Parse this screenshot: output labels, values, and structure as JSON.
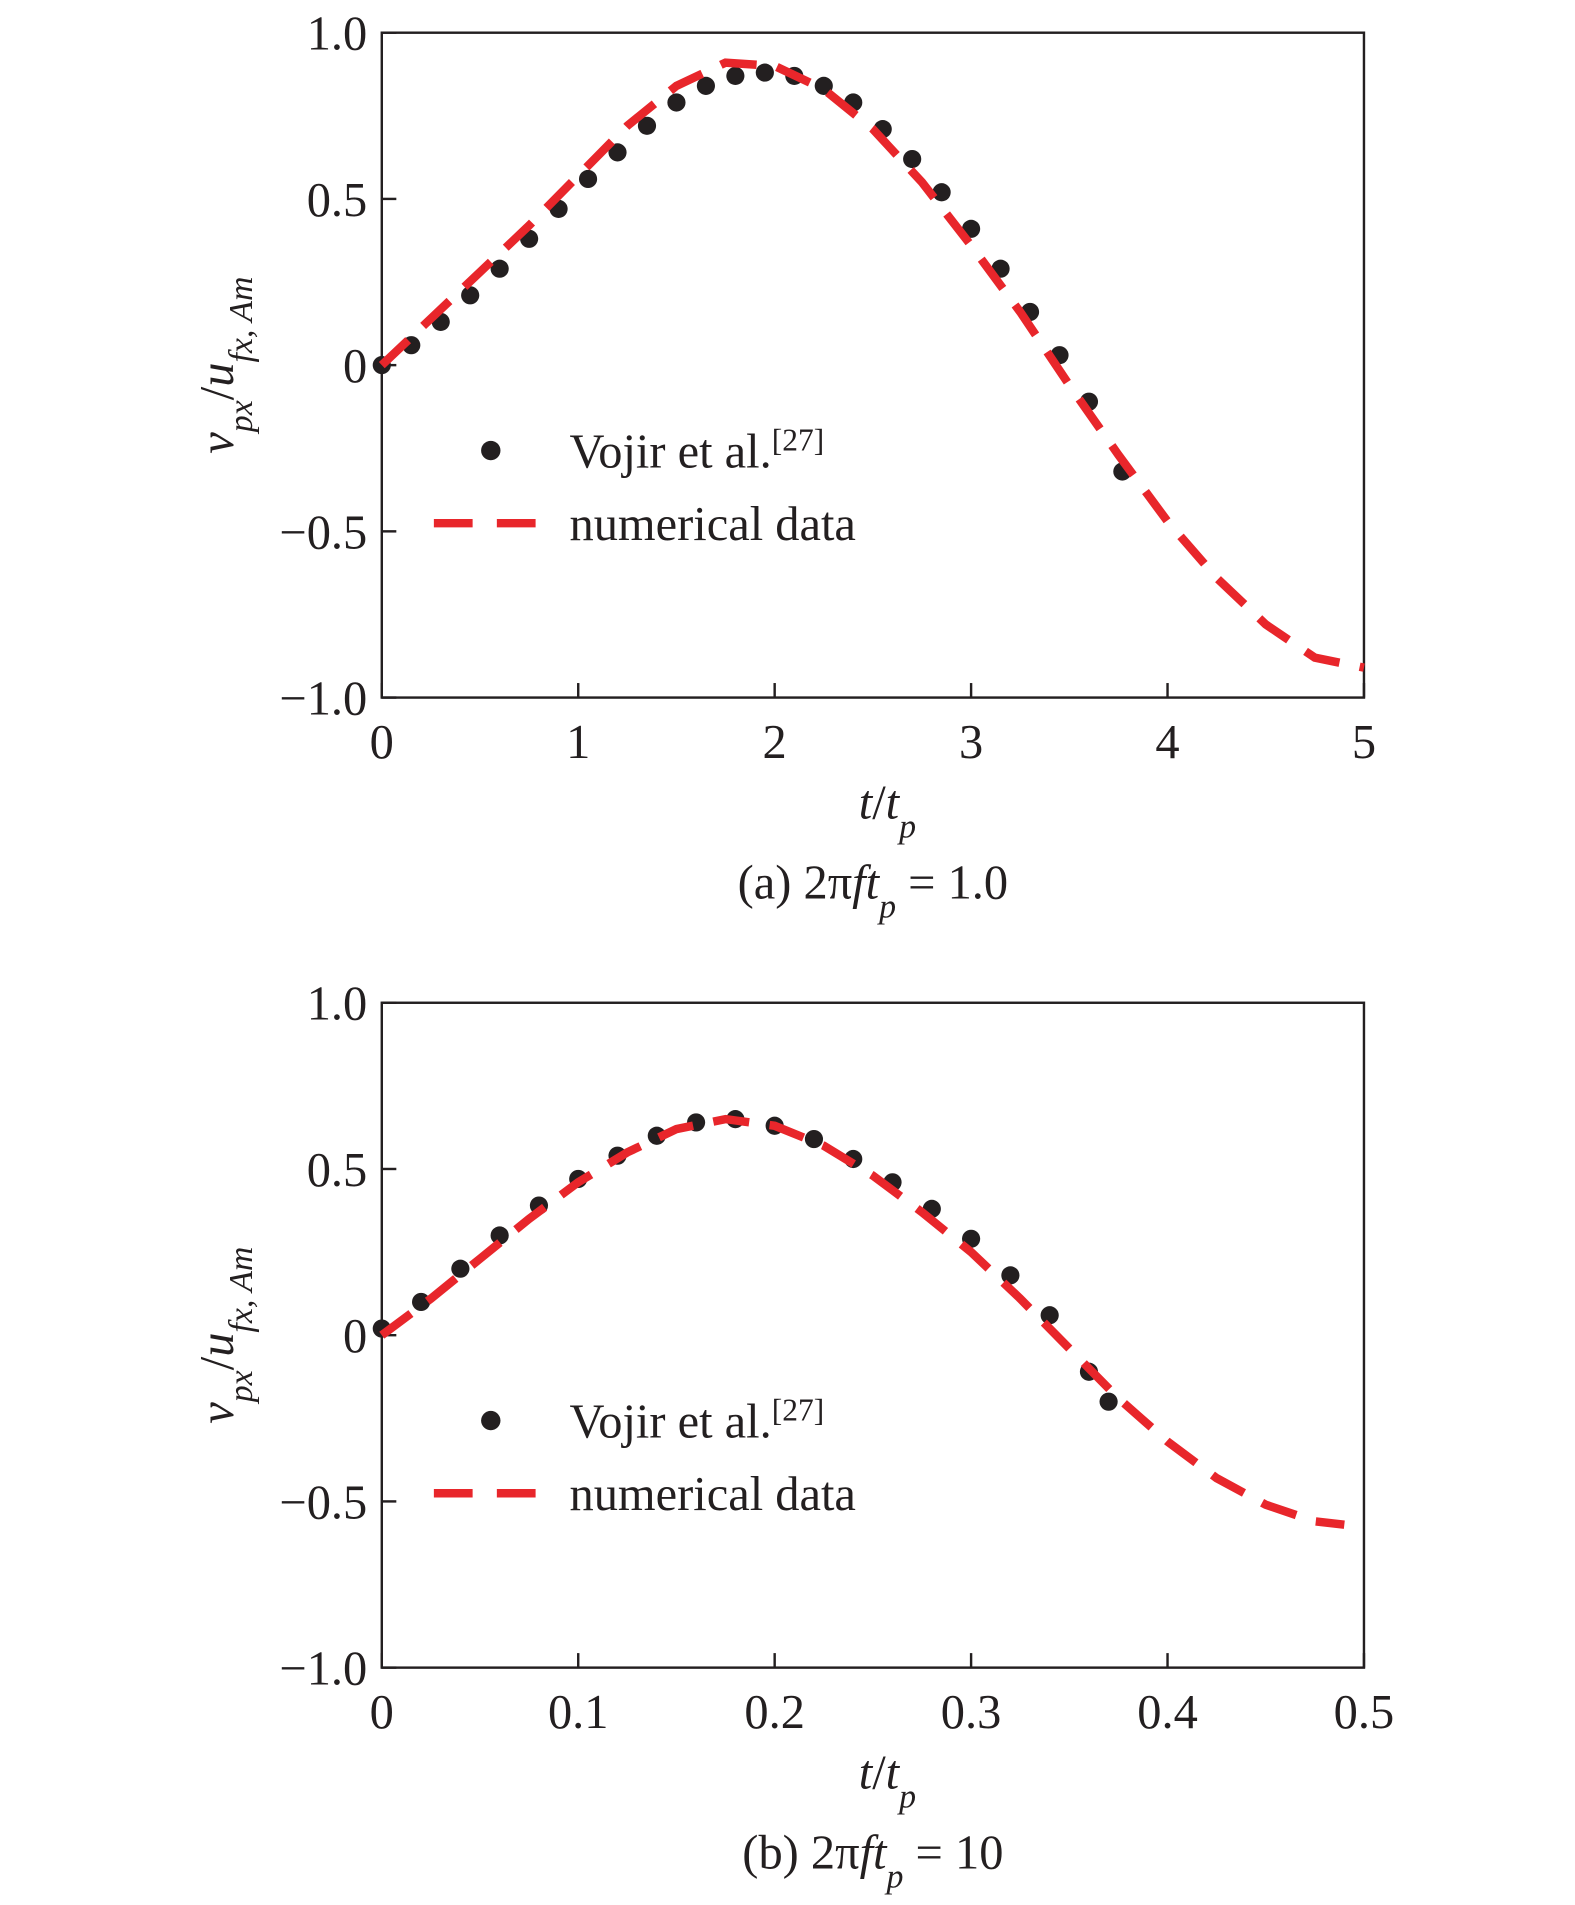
{
  "chart_data": [
    {
      "type": "line",
      "xlabel": [
        {
          "text": "t",
          "italic": true
        },
        {
          "text": "/"
        },
        {
          "text": "t",
          "italic": true
        },
        {
          "text": "p",
          "italic": true,
          "sub": true
        }
      ],
      "ylabel": [
        {
          "text": "v",
          "italic": true
        },
        {
          "text": "px",
          "italic": true,
          "sub": true
        },
        {
          "text": "/"
        },
        {
          "text": "u",
          "italic": true
        },
        {
          "text": "fx, Am",
          "italic": true,
          "sub": true
        }
      ],
      "caption": [
        {
          "text": "(a) 2π"
        },
        {
          "text": "ft",
          "italic": true
        },
        {
          "text": "p",
          "italic": true,
          "sub": true
        },
        {
          "text": " = 1.0"
        }
      ],
      "xlim": [
        0,
        5
      ],
      "ylim": [
        -1.0,
        1.0
      ],
      "xticks": [
        0,
        1,
        2,
        3,
        4,
        5
      ],
      "yticks": [
        {
          "value": -1.0,
          "label": "−1.0"
        },
        {
          "value": -0.5,
          "label": "−0.5"
        },
        0,
        0.5,
        {
          "value": 1.0,
          "label": "1.0"
        }
      ],
      "series": [
        {
          "name": "Vojir et al.",
          "superscript": "[27]",
          "style": "markers",
          "color": "#231f20",
          "x": [
            0,
            0.15,
            0.3,
            0.45,
            0.6,
            0.75,
            0.9,
            1.05,
            1.2,
            1.35,
            1.5,
            1.65,
            1.8,
            1.95,
            2.1,
            2.25,
            2.4,
            2.55,
            2.7,
            2.85,
            3.0,
            3.15,
            3.3,
            3.45,
            3.6,
            3.77
          ],
          "values": [
            0,
            0.06,
            0.13,
            0.21,
            0.29,
            0.38,
            0.47,
            0.56,
            0.64,
            0.72,
            0.79,
            0.84,
            0.87,
            0.88,
            0.87,
            0.84,
            0.79,
            0.71,
            0.62,
            0.52,
            0.41,
            0.29,
            0.16,
            0.03,
            -0.11,
            -0.32
          ]
        },
        {
          "name": "numerical data",
          "style": "dashed",
          "color": "#e8262b",
          "x": [
            0,
            0.25,
            0.5,
            0.75,
            1,
            1.25,
            1.5,
            1.75,
            2,
            2.25,
            2.5,
            2.75,
            3,
            3.25,
            3.5,
            3.75,
            4,
            4.25,
            4.5,
            4.75,
            5
          ],
          "values": [
            0,
            0.14,
            0.28,
            0.42,
            0.57,
            0.72,
            0.84,
            0.91,
            0.9,
            0.83,
            0.71,
            0.55,
            0.36,
            0.16,
            -0.06,
            -0.27,
            -0.47,
            -0.64,
            -0.78,
            -0.88,
            -0.91
          ]
        }
      ]
    },
    {
      "type": "line",
      "xlabel": [
        {
          "text": "t",
          "italic": true
        },
        {
          "text": "/"
        },
        {
          "text": "t",
          "italic": true
        },
        {
          "text": "p",
          "italic": true,
          "sub": true
        }
      ],
      "ylabel": [
        {
          "text": "v",
          "italic": true
        },
        {
          "text": "px",
          "italic": true,
          "sub": true
        },
        {
          "text": "/"
        },
        {
          "text": "u",
          "italic": true
        },
        {
          "text": "fx, Am",
          "italic": true,
          "sub": true
        }
      ],
      "caption": [
        {
          "text": "(b) 2π"
        },
        {
          "text": "ft",
          "italic": true
        },
        {
          "text": "p",
          "italic": true,
          "sub": true
        },
        {
          "text": " = 10"
        }
      ],
      "xlim": [
        0,
        0.5
      ],
      "ylim": [
        -1.0,
        1.0
      ],
      "xticks": [
        0,
        0.1,
        0.2,
        0.3,
        0.4,
        0.5
      ],
      "yticks": [
        {
          "value": -1.0,
          "label": "−1.0"
        },
        {
          "value": -0.5,
          "label": "−0.5"
        },
        0,
        0.5,
        {
          "value": 1.0,
          "label": "1.0"
        }
      ],
      "series": [
        {
          "name": "Vojir et al.",
          "superscript": "[27]",
          "style": "markers",
          "color": "#231f20",
          "x": [
            0,
            0.02,
            0.04,
            0.06,
            0.08,
            0.1,
            0.12,
            0.14,
            0.16,
            0.18,
            0.2,
            0.22,
            0.24,
            0.26,
            0.28,
            0.3,
            0.32,
            0.34,
            0.36,
            0.37
          ],
          "values": [
            0.02,
            0.1,
            0.2,
            0.3,
            0.39,
            0.47,
            0.54,
            0.6,
            0.64,
            0.65,
            0.63,
            0.59,
            0.53,
            0.46,
            0.38,
            0.29,
            0.18,
            0.06,
            -0.11,
            -0.2
          ]
        },
        {
          "name": "numerical data",
          "style": "dashed",
          "color": "#e8262b",
          "x": [
            0,
            0.025,
            0.05,
            0.075,
            0.1,
            0.125,
            0.15,
            0.175,
            0.2,
            0.225,
            0.25,
            0.275,
            0.3,
            0.325,
            0.35,
            0.375,
            0.4,
            0.425,
            0.45,
            0.475,
            0.49
          ],
          "values": [
            0,
            0.11,
            0.23,
            0.35,
            0.46,
            0.55,
            0.62,
            0.65,
            0.63,
            0.57,
            0.48,
            0.37,
            0.25,
            0.11,
            -0.04,
            -0.19,
            -0.32,
            -0.43,
            -0.51,
            -0.56,
            -0.57
          ]
        }
      ]
    }
  ]
}
